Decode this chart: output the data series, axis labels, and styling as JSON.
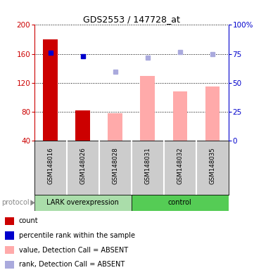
{
  "title": "GDS2553 / 147728_at",
  "samples": [
    "GSM148016",
    "GSM148026",
    "GSM148028",
    "GSM148031",
    "GSM148032",
    "GSM148035"
  ],
  "ylim_left": [
    40,
    200
  ],
  "ylim_right": [
    0,
    100
  ],
  "yticks_left": [
    40,
    80,
    120,
    160,
    200
  ],
  "yticks_right": [
    0,
    25,
    50,
    75,
    100
  ],
  "ytick_labels_right": [
    "0",
    "25",
    "50",
    "75",
    "100%"
  ],
  "bar_values": [
    180,
    82,
    78,
    130,
    108,
    115
  ],
  "bar_colors": [
    "#cc0000",
    "#cc0000",
    "#ffaaaa",
    "#ffaaaa",
    "#ffaaaa",
    "#ffaaaa"
  ],
  "dot_values": [
    162,
    157,
    null,
    null,
    null,
    null
  ],
  "dot_colors": [
    "#0000cc",
    "#0000cc",
    null,
    null,
    null,
    null
  ],
  "rank_values": [
    null,
    null,
    135,
    155,
    163,
    160
  ],
  "rank_colors": [
    null,
    null,
    "#aaaadd",
    "#aaaadd",
    "#aaaadd",
    "#aaaadd"
  ],
  "group_labels": [
    "LARK overexpression",
    "control"
  ],
  "group_colors": [
    "#aaddaa",
    "#55cc55"
  ],
  "protocol_label": "protocol",
  "legend_items": [
    {
      "label": "count",
      "color": "#cc0000"
    },
    {
      "label": "percentile rank within the sample",
      "color": "#0000cc"
    },
    {
      "label": "value, Detection Call = ABSENT",
      "color": "#ffaaaa"
    },
    {
      "label": "rank, Detection Call = ABSENT",
      "color": "#aaaadd"
    }
  ],
  "bg_color": "#ffffff",
  "left_axis_color": "#cc0000",
  "right_axis_color": "#0000cc"
}
